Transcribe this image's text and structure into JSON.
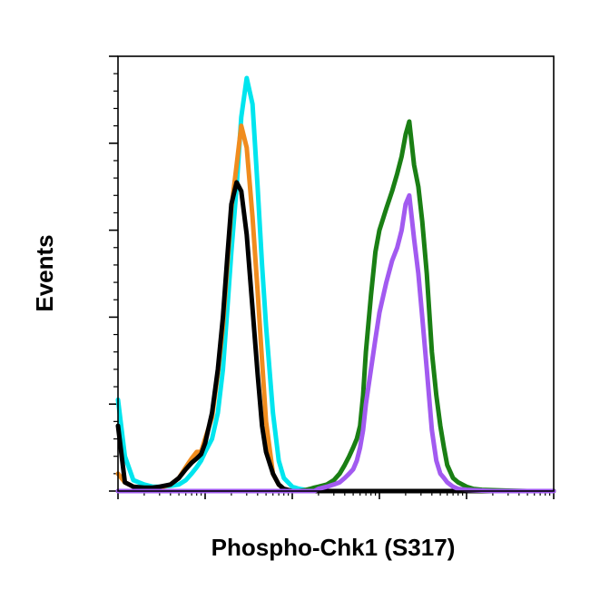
{
  "chart_data": {
    "type": "line",
    "title": "",
    "xlabel": "Phospho-Chk1 (S317)",
    "ylabel": "Events",
    "x_scale": "log",
    "x_range": [
      1,
      100000
    ],
    "ylim": [
      0,
      100
    ],
    "grid": false,
    "legend": "none",
    "x": [
      1,
      1.2,
      1.5,
      2,
      2.5,
      3,
      4,
      5,
      6,
      7,
      8,
      9,
      10,
      12,
      14,
      16,
      18,
      20,
      23,
      26,
      30,
      35,
      40,
      45,
      50,
      60,
      70,
      80,
      100,
      120,
      140,
      160,
      180,
      200,
      250,
      300,
      350,
      400,
      450,
      500,
      550,
      600,
      650,
      700,
      800,
      900,
      1000,
      1200,
      1400,
      1600,
      1800,
      2000,
      2200,
      2500,
      2800,
      3100,
      3500,
      4000,
      4500,
      5000,
      5500,
      6000,
      7000,
      8000,
      10000,
      12000,
      15000,
      20000,
      30000,
      50000,
      100000
    ],
    "series": [
      {
        "color": "#00e5ee",
        "values": [
          21,
          8,
          2.5,
          1.5,
          1,
          1,
          1.2,
          1.5,
          2.5,
          4,
          5.5,
          7,
          9,
          12,
          18,
          28,
          42,
          55,
          70,
          86,
          95,
          89,
          70,
          52,
          38,
          18,
          7,
          3,
          1,
          0.5,
          0.3,
          0.2,
          0.1,
          0,
          0,
          0,
          0,
          0,
          0,
          0,
          0,
          0,
          0,
          0,
          0,
          0,
          0,
          0,
          0,
          0,
          0,
          0,
          0,
          0,
          0,
          0,
          0,
          0,
          0,
          0,
          0,
          0,
          0,
          0,
          0,
          0,
          0,
          0,
          0,
          0,
          0
        ]
      },
      {
        "color": "#f08c1e",
        "values": [
          4,
          2,
          1,
          0.5,
          0.5,
          0.8,
          1.5,
          3,
          5.5,
          7.5,
          9,
          9,
          12,
          17,
          27,
          38,
          52,
          65,
          75,
          84,
          79,
          63,
          46,
          30,
          16,
          4,
          1.5,
          0.5,
          0,
          0,
          0,
          0,
          0,
          0,
          0,
          0,
          0,
          0,
          0,
          0,
          0,
          0,
          0,
          0,
          0,
          0,
          0,
          0,
          0,
          0,
          0,
          0,
          0,
          0,
          0,
          0,
          0,
          0,
          0,
          0,
          0,
          0,
          0,
          0,
          0,
          0,
          0,
          0,
          0,
          0,
          0
        ]
      },
      {
        "color": "#000000",
        "values": [
          15,
          2,
          1,
          0.8,
          0.8,
          1,
          1.5,
          3,
          5,
          6.5,
          7.5,
          8.5,
          11,
          18,
          28,
          40,
          54,
          66,
          71,
          69,
          59,
          42,
          27,
          15,
          9,
          4,
          1.5,
          0.5,
          0,
          0,
          0,
          0,
          0,
          0,
          0,
          0,
          0,
          0,
          0,
          0,
          0,
          0,
          0,
          0,
          0,
          0,
          0,
          0,
          0,
          0,
          0,
          0,
          0,
          0,
          0,
          0,
          0,
          0,
          0,
          0,
          0,
          0,
          0,
          0,
          0,
          0,
          0,
          0,
          0,
          0,
          0
        ]
      },
      {
        "color": "#1a7f14",
        "values": [
          0,
          0,
          0,
          0,
          0,
          0,
          0,
          0,
          0,
          0,
          0,
          0,
          0,
          0,
          0,
          0,
          0,
          0,
          0,
          0,
          0,
          0,
          0,
          0,
          0,
          0,
          0,
          0,
          0,
          0,
          0.2,
          0.5,
          0.8,
          1,
          1.5,
          2.5,
          4,
          6,
          8,
          10,
          12,
          15,
          22,
          32,
          45,
          55,
          60,
          65,
          69,
          73,
          77,
          82,
          85,
          75,
          70,
          62,
          50,
          32,
          22,
          15,
          10,
          6,
          3,
          2,
          1,
          0.5,
          0.3,
          0.2,
          0.1,
          0,
          0
        ]
      },
      {
        "color": "#a25af0",
        "values": [
          0,
          0,
          0,
          0,
          0,
          0,
          0,
          0,
          0,
          0,
          0,
          0,
          0,
          0,
          0,
          0,
          0,
          0,
          0,
          0,
          0,
          0,
          0,
          0,
          0,
          0,
          0,
          0,
          0,
          0,
          0,
          0,
          0,
          0.5,
          1,
          1.5,
          2,
          3,
          4,
          5,
          7,
          10,
          14,
          20,
          28,
          35,
          41,
          48,
          53,
          56,
          60,
          66,
          68,
          58,
          50,
          40,
          28,
          14,
          7,
          4,
          3,
          2,
          1,
          0.5,
          0.3,
          0.2,
          0.1,
          0,
          0,
          0,
          0
        ]
      }
    ]
  }
}
